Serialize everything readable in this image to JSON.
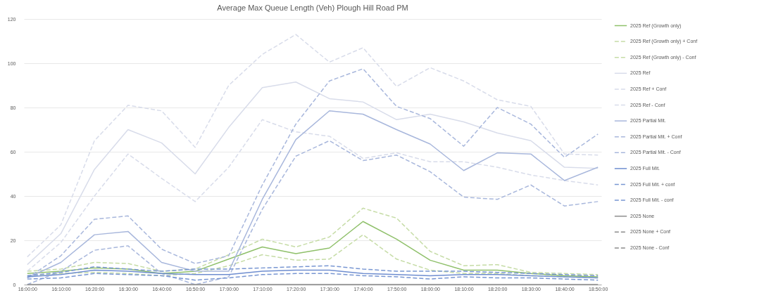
{
  "chart_data": {
    "type": "line",
    "title": "Average Max Queue Length (Veh) Plough Hill Road PM",
    "categories": [
      "16:00:00",
      "16:10:00",
      "16:20:00",
      "16:30:00",
      "16:40:00",
      "16:50:00",
      "17:00:00",
      "17:10:00",
      "17:20:00",
      "17:30:00",
      "17:40:00",
      "17:50:00",
      "18:00:00",
      "18:10:00",
      "18:20:00",
      "18:30:00",
      "18:40:00",
      "18:50:00"
    ],
    "series": [
      {
        "name": "2025 Ref (Growth only)",
        "color": "#8fc06a",
        "line_style": "solid",
        "values": [
          5,
          6,
          7.5,
          7,
          5,
          6,
          11.5,
          17,
          14,
          16.5,
          28.5,
          20.5,
          11,
          6.5,
          6.5,
          5,
          4,
          3.5
        ]
      },
      {
        "name": "2025 Ref (Growth only) + Conf",
        "color": "#c6dca6",
        "line_style": "dashed",
        "values": [
          6,
          7,
          10,
          9.5,
          6,
          7,
          13.5,
          20.5,
          17,
          21.5,
          34.5,
          30,
          15,
          8.5,
          9,
          5.5,
          5,
          4.5
        ]
      },
      {
        "name": "2025 Ref (Growth only) - Conf",
        "color": "#c6dca6",
        "line_style": "dashed",
        "values": [
          4,
          5,
          5.5,
          5,
          4,
          5,
          8.5,
          13.5,
          11,
          11.5,
          22.5,
          11.5,
          6.5,
          5,
          5,
          4,
          3.5,
          3
        ]
      },
      {
        "name": "2025 Ref",
        "color": "#d8dcea",
        "line_style": "solid",
        "values": [
          9,
          23,
          52,
          70,
          64,
          50,
          71,
          89,
          91.5,
          84,
          82.5,
          74.5,
          77,
          73.5,
          68.5,
          65,
          53,
          52.5
        ]
      },
      {
        "name": "2025 Ref + Conf",
        "color": "#d8dcea",
        "line_style": "dashed",
        "values": [
          12.5,
          27,
          65,
          81,
          78.5,
          62,
          90,
          104,
          113,
          100.5,
          107,
          89.5,
          98,
          92,
          83.5,
          80.5,
          59,
          58.5
        ]
      },
      {
        "name": "2025 Ref - Conf",
        "color": "#d8dcea",
        "line_style": "dashed",
        "values": [
          6,
          19,
          40,
          59,
          48,
          37.5,
          53,
          74.5,
          69,
          67,
          57,
          59.5,
          55.5,
          55.5,
          53,
          49.5,
          47,
          45
        ]
      },
      {
        "name": "2025 Partial Mit.",
        "color": "#a8b7dc",
        "line_style": "solid",
        "values": [
          3,
          10,
          22.5,
          24,
          10,
          6,
          6,
          38.5,
          65.5,
          78.5,
          77,
          70,
          63.5,
          51.5,
          59.5,
          59,
          47,
          53
        ]
      },
      {
        "name": "2025 Partial Mit. + Conf",
        "color": "#a8b7dc",
        "line_style": "dashed",
        "values": [
          3,
          13,
          29.5,
          31,
          16,
          9.5,
          13,
          45,
          72.5,
          92,
          97.5,
          80.5,
          75,
          62.5,
          80,
          72.5,
          57.5,
          68
        ]
      },
      {
        "name": "2025 Partial Mit. - Conf",
        "color": "#a8b7dc",
        "line_style": "dashed",
        "values": [
          0,
          6,
          15.5,
          17.5,
          5,
          0,
          3.5,
          34,
          58,
          65,
          56,
          58.5,
          51,
          39.5,
          38.5,
          45,
          35.5,
          37.5
        ]
      },
      {
        "name": "2025 Full Mit.",
        "color": "#6f8ed0",
        "line_style": "solid",
        "values": [
          3.5,
          4.5,
          6.5,
          6,
          5,
          4.5,
          4.5,
          6,
          6.5,
          6.5,
          5,
          4.5,
          4,
          4.5,
          4.5,
          4,
          3.5,
          3
        ]
      },
      {
        "name": "2025 Full Mit. + conf",
        "color": "#7896d2",
        "line_style": "dashed",
        "values": [
          4,
          5.5,
          8,
          7,
          6,
          7,
          7,
          7.5,
          8,
          8.5,
          7,
          6,
          6,
          6,
          5.5,
          5,
          4.5,
          4
        ]
      },
      {
        "name": "2025 Full Mit. - conf",
        "color": "#7896d2",
        "line_style": "dashed",
        "values": [
          2.5,
          3,
          5,
          4.5,
          4,
          2,
          3,
          4.5,
          5,
          5,
          4,
          3.5,
          2.5,
          3.5,
          3,
          3,
          2.5,
          2
        ]
      },
      {
        "name": "2025 None",
        "color": "#8c8c8c",
        "line_style": "solid",
        "values": [
          0,
          0,
          0,
          0,
          0,
          0,
          0,
          0,
          0,
          0,
          0,
          0,
          0,
          0,
          0,
          0,
          0,
          0
        ]
      },
      {
        "name": "2025 None + Conf",
        "color": "#8c8c8c",
        "line_style": "dashed",
        "values": [
          null,
          null,
          null,
          null,
          null,
          null,
          null,
          null,
          null,
          null,
          null,
          null,
          null,
          null,
          null,
          null,
          null,
          null
        ]
      },
      {
        "name": "2025 None - Conf",
        "color": "#8c8c8c",
        "line_style": "dashed",
        "values": [
          null,
          null,
          null,
          null,
          null,
          null,
          null,
          null,
          null,
          null,
          null,
          null,
          null,
          null,
          null,
          null,
          null,
          null
        ]
      }
    ],
    "ylim": [
      0,
      120
    ],
    "yticks": [
      0,
      20,
      40,
      60,
      80,
      100,
      120
    ],
    "grid": "y",
    "legend": "right"
  }
}
